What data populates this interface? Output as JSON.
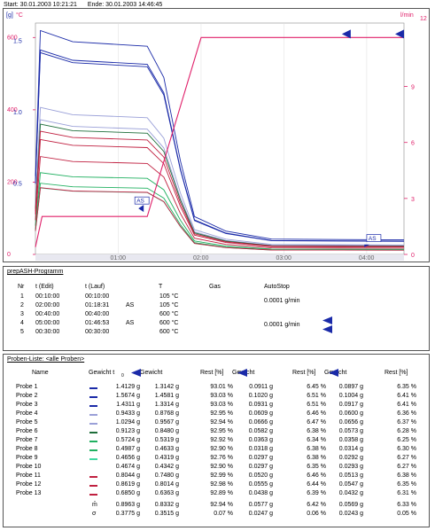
{
  "header": {
    "start": "Start: 30.01.2003 10:21:21",
    "end": "Ende: 30.01.2003 14:46:45"
  },
  "chart_data": {
    "type": "line",
    "left_axis_label_g": "[g]",
    "left_axis_label_c": "°C",
    "right_axis_label": "l/min",
    "right_axis_max": "12",
    "left_ticks_c": [
      "600",
      "400",
      "200",
      "0"
    ],
    "left_ticks_g": [
      "1.5",
      "1.0",
      "0.5"
    ],
    "right_ticks": [
      "9",
      "6",
      "3",
      "0"
    ],
    "x_ticks": [
      "01:00",
      "02:00",
      "03:00",
      "04:00"
    ],
    "as_markers": [
      "AS",
      "AS"
    ],
    "temperature_profile": {
      "name": "T",
      "color": "#e0206a",
      "points": [
        [
          0,
          20
        ],
        [
          0.08,
          105
        ],
        [
          1.35,
          105
        ],
        [
          2.0,
          600
        ],
        [
          4.45,
          600
        ]
      ]
    },
    "series": [
      {
        "name": "Probe 1",
        "color": "#1a2aa8",
        "start": 1.4129,
        "end": 0.0911
      },
      {
        "name": "Probe 2",
        "color": "#1a2aa8",
        "start": 1.5674,
        "end": 0.102
      },
      {
        "name": "Probe 3",
        "color": "#1a2aa8",
        "start": 1.4311,
        "end": 0.0931
      },
      {
        "name": "Probe 4",
        "color": "#9aa0d8",
        "start": 0.9433,
        "end": 0.0609
      },
      {
        "name": "Probe 5",
        "color": "#9aa0d8",
        "start": 1.0294,
        "end": 0.0666
      },
      {
        "name": "Probe 6",
        "color": "#1e6e3a",
        "start": 0.9123,
        "end": 0.0582
      },
      {
        "name": "Probe 7",
        "color": "#20b060",
        "start": 0.5724,
        "end": 0.0363
      },
      {
        "name": "Probe 8",
        "color": "#20b060",
        "start": 0.4987,
        "end": 0.0318
      },
      {
        "name": "Probe 9",
        "color": "#40d8a0",
        "start": 0.4656,
        "end": 0.0297
      },
      {
        "name": "Probe 10",
        "color": "#c02040",
        "start": 0.4674,
        "end": 0.0297
      },
      {
        "name": "Probe 11",
        "color": "#c02040",
        "start": 0.8044,
        "end": 0.052
      },
      {
        "name": "Probe 12",
        "color": "#c02040",
        "start": 0.8619,
        "end": 0.0555
      },
      {
        "name": "Probe 13",
        "color": "#c02040",
        "start": 0.685,
        "end": 0.0438
      }
    ]
  },
  "program": {
    "title": "prepASH-Programm",
    "headers": {
      "nr": "Nr",
      "edit": "t (Edit)",
      "lauf": "t (Lauf)",
      "t": "T",
      "gas": "Gas",
      "autostop": "AutoStop"
    },
    "rows": [
      {
        "nr": "1",
        "edit": "00:10:00",
        "lauf": "00:10:00",
        "as": "",
        "t": "105 °C"
      },
      {
        "nr": "2",
        "edit": "02:00:00",
        "lauf": "01:18:31",
        "as": "AS",
        "t": "105 °C"
      },
      {
        "nr": "3",
        "edit": "00:40:00",
        "lauf": "00:40:00",
        "as": "",
        "t": "600 °C"
      },
      {
        "nr": "4",
        "edit": "05:00:00",
        "lauf": "01:46:53",
        "as": "AS",
        "t": "600 °C"
      },
      {
        "nr": "5",
        "edit": "00:30:00",
        "lauf": "00:30:00",
        "as": "",
        "t": "600 °C"
      }
    ],
    "autostop": [
      "0.0001 g/min",
      "0.0001 g/min"
    ]
  },
  "samples": {
    "title": "Proben-Liste: <alle Proben>",
    "headers": [
      "Name",
      "Gewicht t",
      "Gewicht",
      "Rest [%]",
      "Gewicht",
      "Rest [%]",
      "Gewicht",
      "Rest [%]"
    ],
    "header_sub": "0",
    "rows": [
      {
        "name": "Probe 1",
        "color": "#1a2aa8",
        "v": [
          "1.4129 g",
          "1.3142 g",
          "93.01 %",
          "0.0911 g",
          "6.45 %",
          "0.0897 g",
          "6.35 %"
        ]
      },
      {
        "name": "Probe 2",
        "color": "#1a2aa8",
        "v": [
          "1.5674 g",
          "1.4581 g",
          "93.03 %",
          "0.1020 g",
          "6.51 %",
          "0.1004 g",
          "6.41 %"
        ]
      },
      {
        "name": "Probe 3",
        "color": "#1a2aa8",
        "v": [
          "1.4311 g",
          "1.3314 g",
          "93.03 %",
          "0.0931 g",
          "6.51 %",
          "0.0917 g",
          "6.41 %"
        ]
      },
      {
        "name": "Probe 4",
        "color": "#9aa0d8",
        "v": [
          "0.9433 g",
          "0.8768 g",
          "92.95 %",
          "0.0609 g",
          "6.46 %",
          "0.0600 g",
          "6.36 %"
        ]
      },
      {
        "name": "Probe 5",
        "color": "#9aa0d8",
        "v": [
          "1.0294 g",
          "0.9567 g",
          "92.94 %",
          "0.0666 g",
          "6.47 %",
          "0.0656 g",
          "6.37 %"
        ]
      },
      {
        "name": "Probe 6",
        "color": "#1e6e3a",
        "v": [
          "0.9123 g",
          "0.8480 g",
          "92.95 %",
          "0.0582 g",
          "6.38 %",
          "0.0573 g",
          "6.28 %"
        ]
      },
      {
        "name": "Probe 7",
        "color": "#20b060",
        "v": [
          "0.5724 g",
          "0.5319 g",
          "92.92 %",
          "0.0363 g",
          "6.34 %",
          "0.0358 g",
          "6.25 %"
        ]
      },
      {
        "name": "Probe 8",
        "color": "#20b060",
        "v": [
          "0.4987 g",
          "0.4633 g",
          "92.90 %",
          "0.0318 g",
          "6.38 %",
          "0.0314 g",
          "6.30 %"
        ]
      },
      {
        "name": "Probe 9",
        "color": "#40d8a0",
        "v": [
          "0.4656 g",
          "0.4319 g",
          "92.76 %",
          "0.0297 g",
          "6.38 %",
          "0.0292 g",
          "6.27 %"
        ]
      },
      {
        "name": "Probe 10",
        "color": "#ffffff",
        "v": [
          "0.4674 g",
          "0.4342 g",
          "92.90 %",
          "0.0297 g",
          "6.35 %",
          "0.0293 g",
          "6.27 %"
        ]
      },
      {
        "name": "Probe 11",
        "color": "#c02040",
        "v": [
          "0.8044 g",
          "0.7480 g",
          "92.99 %",
          "0.0520 g",
          "6.46 %",
          "0.0513 g",
          "6.38 %"
        ]
      },
      {
        "name": "Probe 12",
        "color": "#c02040",
        "v": [
          "0.8619 g",
          "0.8014 g",
          "92.98 %",
          "0.0555 g",
          "6.44 %",
          "0.0547 g",
          "6.35 %"
        ]
      },
      {
        "name": "Probe 13",
        "color": "#c02040",
        "v": [
          "0.6850 g",
          "0.6363 g",
          "92.89 %",
          "0.0438 g",
          "6.39 %",
          "0.0432 g",
          "6.31 %"
        ]
      }
    ],
    "stats": [
      {
        "label": "m̄",
        "v": [
          "0.8963 g",
          "0.8332 g",
          "92.94 %",
          "0.0577 g",
          "6.42 %",
          "0.0569 g",
          "6.33 %"
        ]
      },
      {
        "label": "σ",
        "v": [
          "0.3775 g",
          "0.3515 g",
          "0.07 %",
          "0.0247 g",
          "0.06 %",
          "0.0243 g",
          "0.05 %"
        ]
      }
    ]
  }
}
